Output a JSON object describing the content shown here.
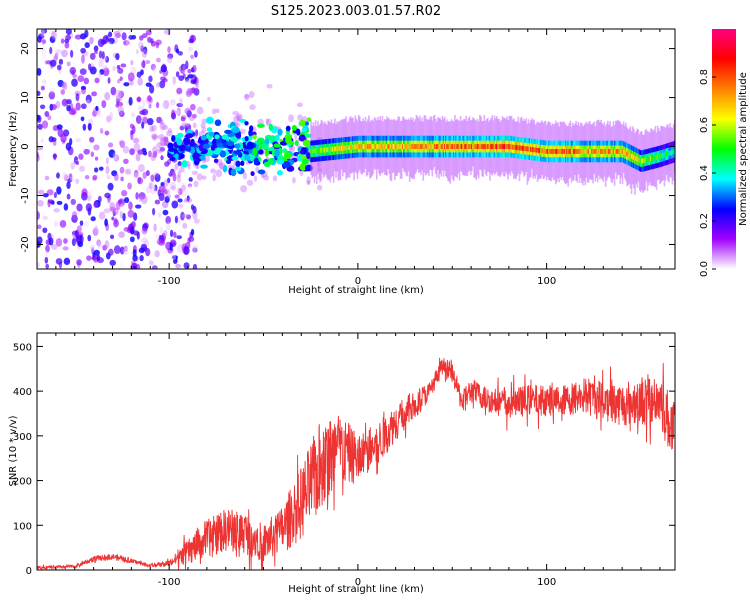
{
  "title": "S125.2023.003.01.57.R02",
  "chart_data": [
    {
      "type": "heatmap",
      "name": "spectrogram",
      "xlabel": "Height of straight line (km)",
      "ylabel": "Frequency (Hz)",
      "xlim": [
        -170,
        168
      ],
      "ylim": [
        -25,
        24
      ],
      "xticks": [
        -100,
        0,
        100
      ],
      "yticks": [
        -20,
        -10,
        0,
        10,
        20
      ],
      "colorbar": {
        "label": "Normalized spectral amplitude",
        "range": [
          0,
          1
        ],
        "ticks": [
          0.0,
          0.2,
          0.4,
          0.6,
          0.8
        ],
        "colormap": [
          "#ffffff",
          "#a000ff",
          "#0000ff",
          "#00ffff",
          "#00ff00",
          "#ffff00",
          "#ff8000",
          "#ff0000",
          "#ff0080"
        ]
      },
      "signal_line": {
        "x": [
          -25,
          0,
          40,
          80,
          100,
          140,
          150,
          160,
          168
        ],
        "frequency": [
          -1,
          0,
          0,
          0,
          -1,
          -1,
          -3,
          -2,
          -1
        ],
        "peak_amplitude": [
          0.55,
          0.7,
          0.75,
          0.85,
          0.8,
          0.75,
          0.6,
          0.5,
          0.4
        ]
      },
      "scatter_region": {
        "x_range": [
          -100,
          -25
        ],
        "frequency_range": [
          -10,
          10
        ],
        "amplitude_range": [
          0.2,
          0.55
        ]
      },
      "noise_region": {
        "x_range": [
          -170,
          -100
        ],
        "amplitude_range": [
          0,
          0.25
        ]
      }
    },
    {
      "type": "line",
      "name": "snr",
      "xlabel": "Height of straight line (km)",
      "ylabel": "SNR (10 * v/v)",
      "xlim": [
        -170,
        168
      ],
      "ylim": [
        0,
        530
      ],
      "xticks": [
        -100,
        0,
        100
      ],
      "yticks": [
        0,
        100,
        200,
        300,
        400,
        500
      ],
      "color": "#ee3333",
      "envelope": {
        "x": [
          -170,
          -150,
          -140,
          -130,
          -120,
          -110,
          -100,
          -90,
          -80,
          -70,
          -60,
          -50,
          -40,
          -30,
          -20,
          -10,
          0,
          10,
          20,
          30,
          38,
          45,
          50,
          55,
          60,
          70,
          80,
          90,
          100,
          110,
          120,
          130,
          140,
          150,
          160,
          165,
          168
        ],
        "mean": [
          5,
          8,
          25,
          30,
          20,
          10,
          15,
          40,
          70,
          90,
          85,
          60,
          90,
          150,
          230,
          270,
          250,
          280,
          330,
          370,
          400,
          460,
          440,
          380,
          400,
          380,
          370,
          380,
          380,
          380,
          390,
          380,
          370,
          380,
          380,
          330,
          300
        ],
        "spread": [
          5,
          5,
          10,
          10,
          8,
          5,
          10,
          40,
          60,
          70,
          70,
          60,
          80,
          120,
          150,
          120,
          80,
          70,
          60,
          50,
          30,
          25,
          30,
          40,
          40,
          40,
          50,
          50,
          50,
          50,
          60,
          70,
          70,
          80,
          90,
          100,
          100
        ]
      }
    }
  ]
}
